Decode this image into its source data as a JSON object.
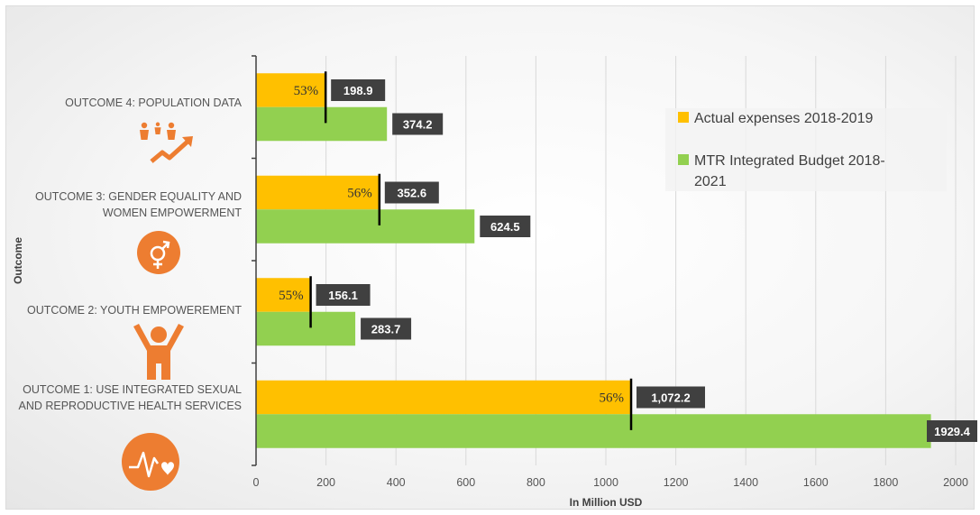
{
  "chart_data": {
    "type": "bar",
    "orientation": "horizontal",
    "categories": [
      "OUTCOME 4: POPULATION DATA",
      "OUTCOME 3: GENDER EQUALITY AND WOMEN EMPOWERMENT",
      "OUTCOME 2: YOUTH EMPOWEREMENT",
      "OUTCOME 1: USE INTEGRATED SEXUAL AND REPRODUCTIVE HEALTH SERVICES"
    ],
    "category_lines": [
      [
        "OUTCOME 4: POPULATION DATA"
      ],
      [
        "OUTCOME 3: GENDER EQUALITY AND",
        "WOMEN EMPOWERMENT"
      ],
      [
        "OUTCOME 2: YOUTH EMPOWEREMENT"
      ],
      [
        "OUTCOME 1: USE INTEGRATED SEXUAL",
        "AND REPRODUCTIVE HEALTH SERVICES"
      ]
    ],
    "category_icons": [
      "population-growth-icon",
      "gender-symbol-icon",
      "youth-figure-icon",
      "heartbeat-icon"
    ],
    "series": [
      {
        "name": "Actual expenses 2018-2019",
        "color": "#FFC000",
        "values": [
          198.9,
          352.6,
          156.1,
          1072.2
        ],
        "labels": [
          "198.9",
          "352.6",
          "156.1",
          "1,072.2"
        ]
      },
      {
        "name": "MTR Integrated Budget 2018-2021",
        "legend_lines": [
          "MTR Integrated Budget 2018-",
          "2021"
        ],
        "color": "#92D050",
        "values": [
          374.2,
          624.5,
          283.7,
          1929.4
        ],
        "labels": [
          "374.2",
          "624.5",
          "283.7",
          "1929.4"
        ]
      }
    ],
    "percent_labels": [
      "53%",
      "56%",
      "55%",
      "56%"
    ],
    "xlabel": "In Million USD",
    "ylabel": "Outcome",
    "xlim": [
      0,
      2000
    ],
    "xticks": [
      0,
      200,
      400,
      600,
      800,
      1000,
      1200,
      1400,
      1600,
      1800,
      2000
    ],
    "grid": "vertical",
    "legend_position": "right",
    "icon_color": "#ED7D31",
    "label_box_color": "#404040"
  }
}
